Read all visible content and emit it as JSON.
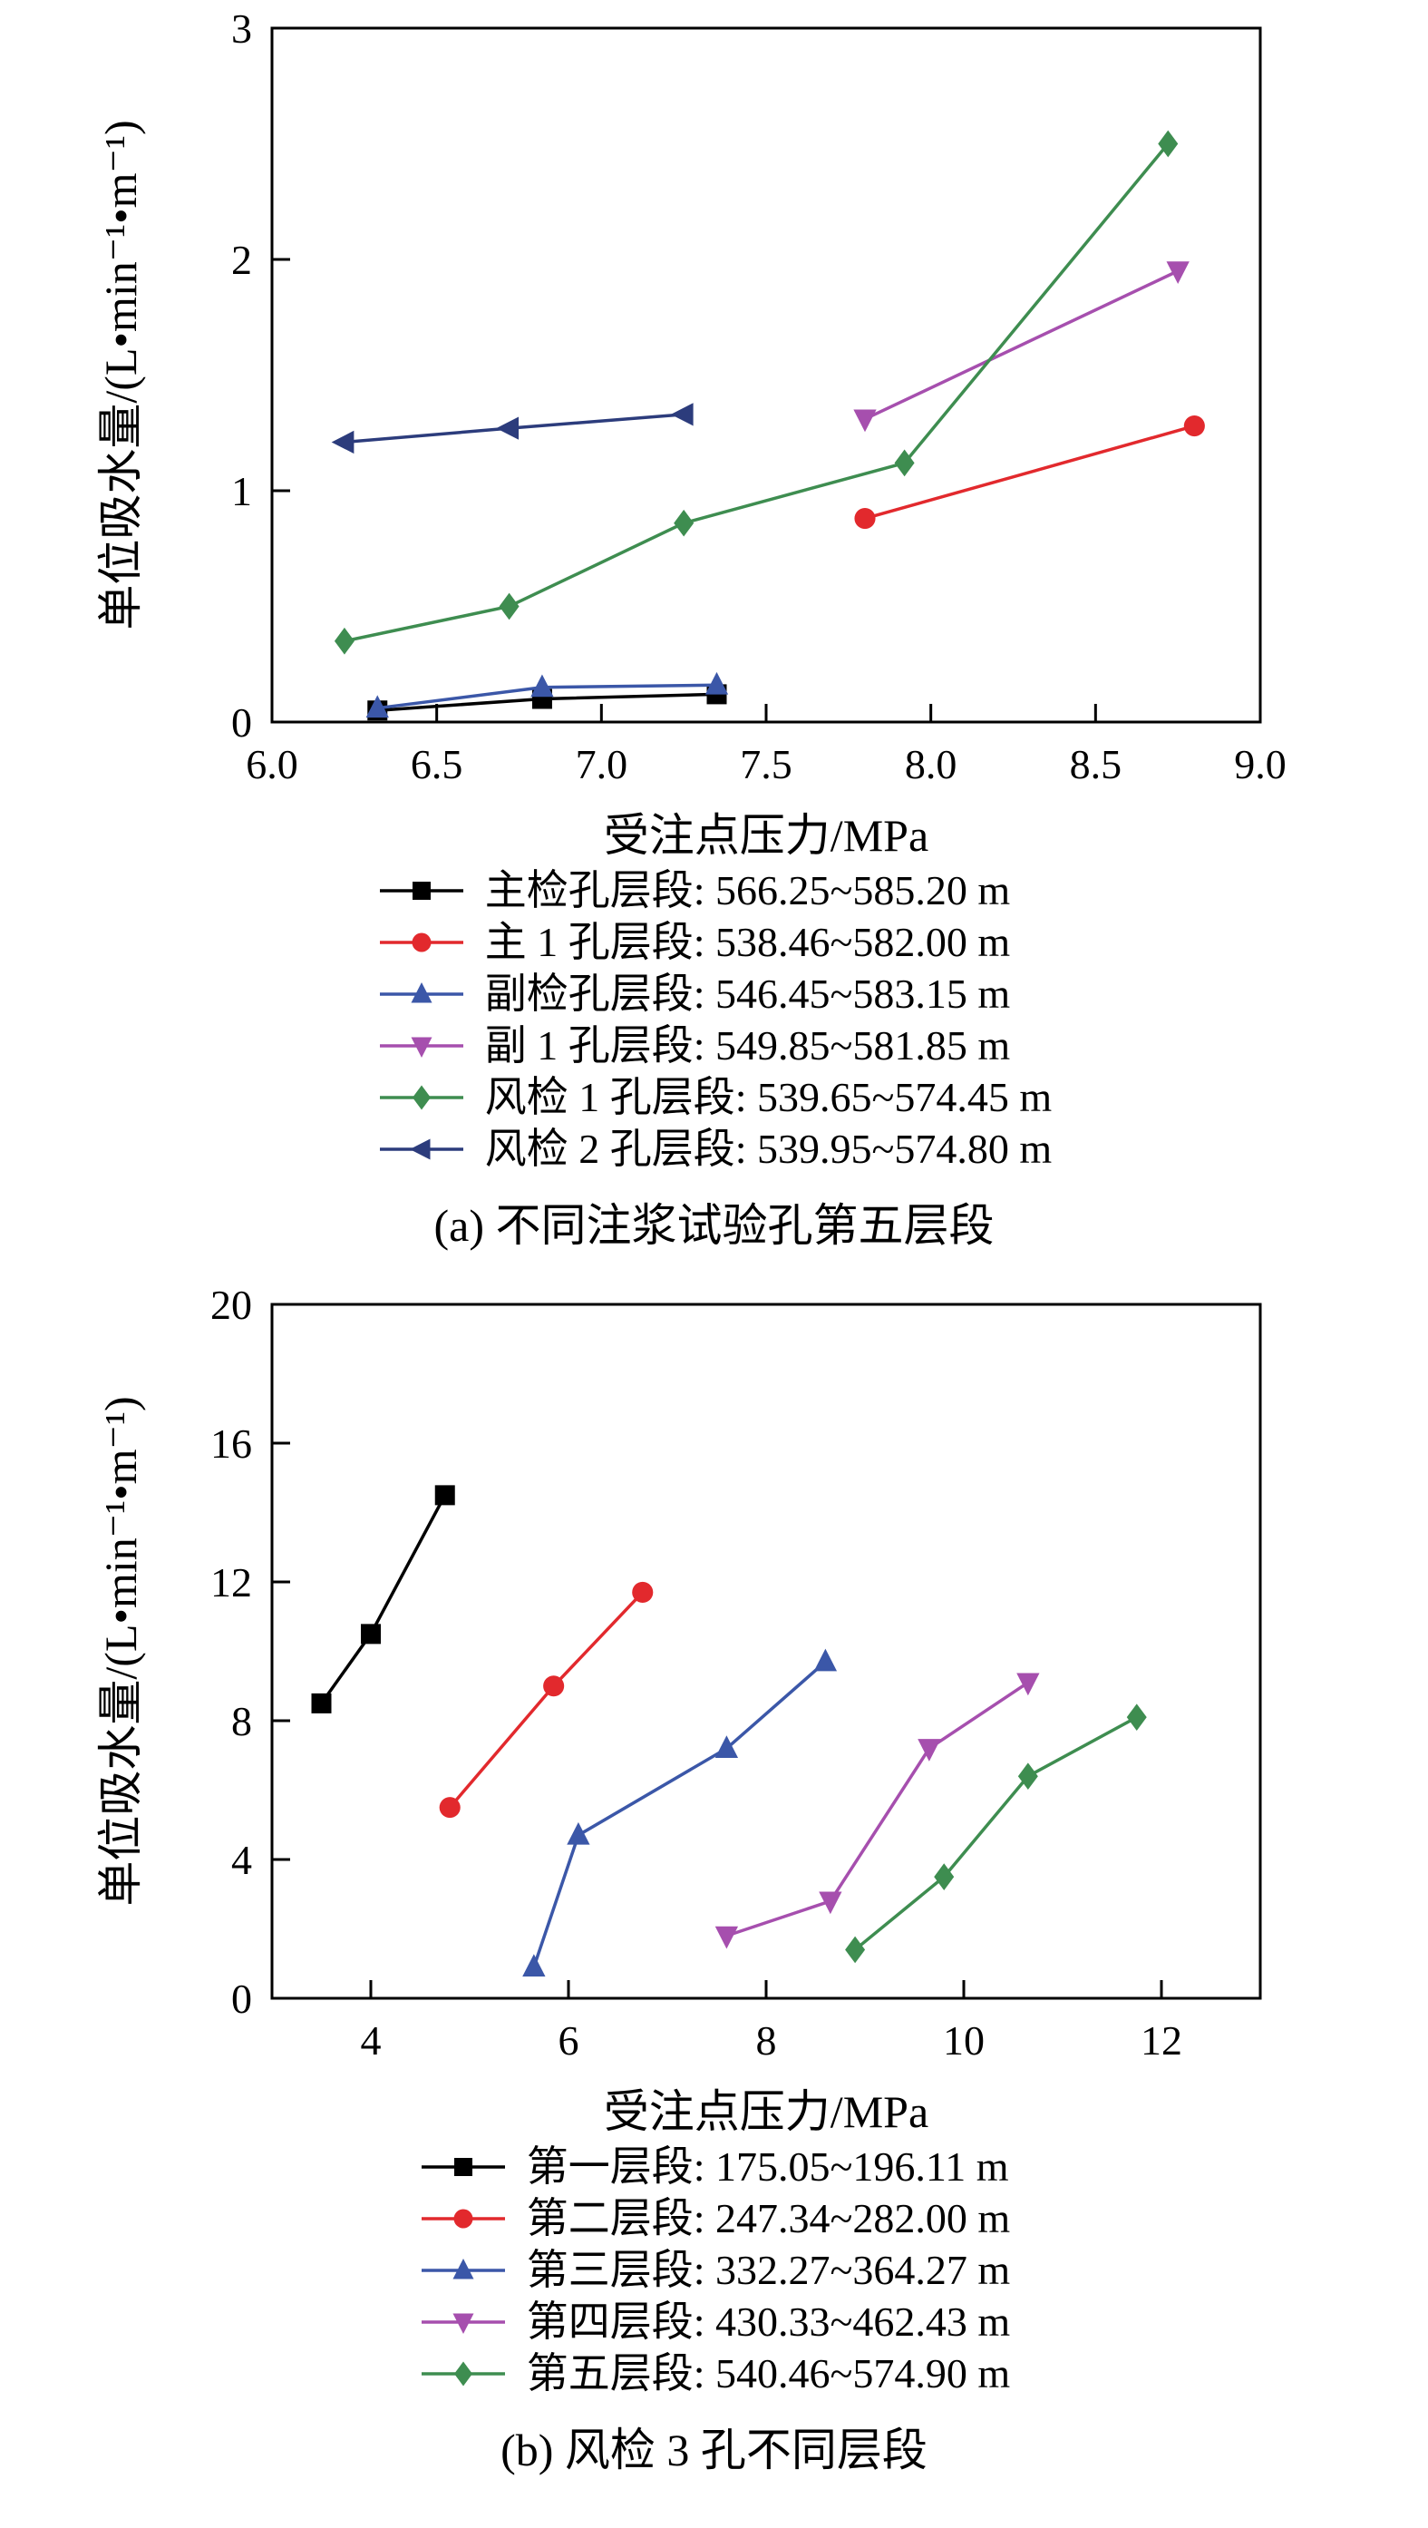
{
  "figure": {
    "background": "#ffffff",
    "series_colors": {
      "black": "#000000",
      "red": "#e2292d",
      "blue": "#3b57a8",
      "purple": "#a64fae",
      "green": "#3e8d50",
      "navy": "#2c3c7c"
    }
  },
  "chart_data": [
    {
      "id": "a",
      "type": "line",
      "caption": "(a) 不同注浆试验孔第五层段",
      "xlabel": "受注点压力/MPa",
      "ylabel": "单位吸水量/(L•min⁻¹•m⁻¹)",
      "xlim": [
        6.0,
        9.0
      ],
      "ylim": [
        0,
        3
      ],
      "xticks": [
        6.0,
        6.5,
        7.0,
        7.5,
        8.0,
        8.5,
        9.0
      ],
      "xtick_labels": [
        "6.0",
        "6.5",
        "7.0",
        "7.5",
        "8.0",
        "8.5",
        "9.0"
      ],
      "yticks": [
        0,
        1,
        2,
        3
      ],
      "ytick_labels": [
        "0",
        "1",
        "2",
        "3"
      ],
      "grid": false,
      "legend_position": "below",
      "series": [
        {
          "name": "主检孔层段: 566.25~585.20 m",
          "color": "#000000",
          "marker": "square",
          "x": [
            6.32,
            6.82,
            7.35
          ],
          "y": [
            0.05,
            0.1,
            0.12
          ]
        },
        {
          "name": "主 1 孔层段: 538.46~582.00 m",
          "color": "#e2292d",
          "marker": "circle",
          "x": [
            7.8,
            8.8
          ],
          "y": [
            0.88,
            1.28
          ]
        },
        {
          "name": "副检孔层段: 546.45~583.15 m",
          "color": "#3b57a8",
          "marker": "triangle-up",
          "x": [
            6.32,
            6.82,
            7.35
          ],
          "y": [
            0.06,
            0.15,
            0.16
          ]
        },
        {
          "name": "副 1 孔层段: 549.85~581.85 m",
          "color": "#a64fae",
          "marker": "triangle-down",
          "x": [
            7.8,
            8.75
          ],
          "y": [
            1.31,
            1.95
          ]
        },
        {
          "name": "风检 1 孔层段: 539.65~574.45 m",
          "color": "#3e8d50",
          "marker": "diamond",
          "x": [
            6.22,
            6.72,
            7.25,
            7.92,
            8.72
          ],
          "y": [
            0.35,
            0.5,
            0.86,
            1.12,
            2.5
          ]
        },
        {
          "name": "风检 2 孔层段: 539.95~574.80 m",
          "color": "#2c3c7c",
          "marker": "triangle-left",
          "x": [
            6.22,
            6.72,
            7.25
          ],
          "y": [
            1.21,
            1.27,
            1.33
          ]
        }
      ]
    },
    {
      "id": "b",
      "type": "line",
      "caption": "(b) 风检 3 孔不同层段",
      "xlabel": "受注点压力/MPa",
      "ylabel": "单位吸水量/(L•min⁻¹•m⁻¹)",
      "xlim": [
        3,
        13
      ],
      "ylim": [
        0,
        20
      ],
      "xticks": [
        4,
        6,
        8,
        10,
        12
      ],
      "xtick_labels": [
        "4",
        "6",
        "8",
        "10",
        "12"
      ],
      "yticks": [
        0,
        4,
        8,
        12,
        16,
        20
      ],
      "ytick_labels": [
        "0",
        "4",
        "8",
        "12",
        "16",
        "20"
      ],
      "grid": false,
      "legend_position": "below",
      "series": [
        {
          "name": "第一层段: 175.05~196.11 m",
          "color": "#000000",
          "marker": "square",
          "x": [
            3.5,
            4.0,
            4.75
          ],
          "y": [
            8.5,
            10.5,
            14.5
          ]
        },
        {
          "name": "第二层段: 247.34~282.00 m",
          "color": "#e2292d",
          "marker": "circle",
          "x": [
            4.8,
            5.85,
            6.75
          ],
          "y": [
            5.5,
            9.0,
            11.7
          ]
        },
        {
          "name": "第三层段: 332.27~364.27 m",
          "color": "#3b57a8",
          "marker": "triangle-up",
          "x": [
            5.65,
            6.1,
            7.6,
            8.6
          ],
          "y": [
            0.9,
            4.7,
            7.2,
            9.7
          ]
        },
        {
          "name": "第四层段: 430.33~462.43 m",
          "color": "#a64fae",
          "marker": "triangle-down",
          "x": [
            7.6,
            8.65,
            9.65,
            10.65
          ],
          "y": [
            1.8,
            2.8,
            7.2,
            9.1
          ]
        },
        {
          "name": "第五层段: 540.46~574.90 m",
          "color": "#3e8d50",
          "marker": "diamond",
          "x": [
            8.9,
            9.8,
            10.65,
            11.75
          ],
          "y": [
            1.4,
            3.5,
            6.4,
            8.1
          ]
        }
      ]
    }
  ]
}
